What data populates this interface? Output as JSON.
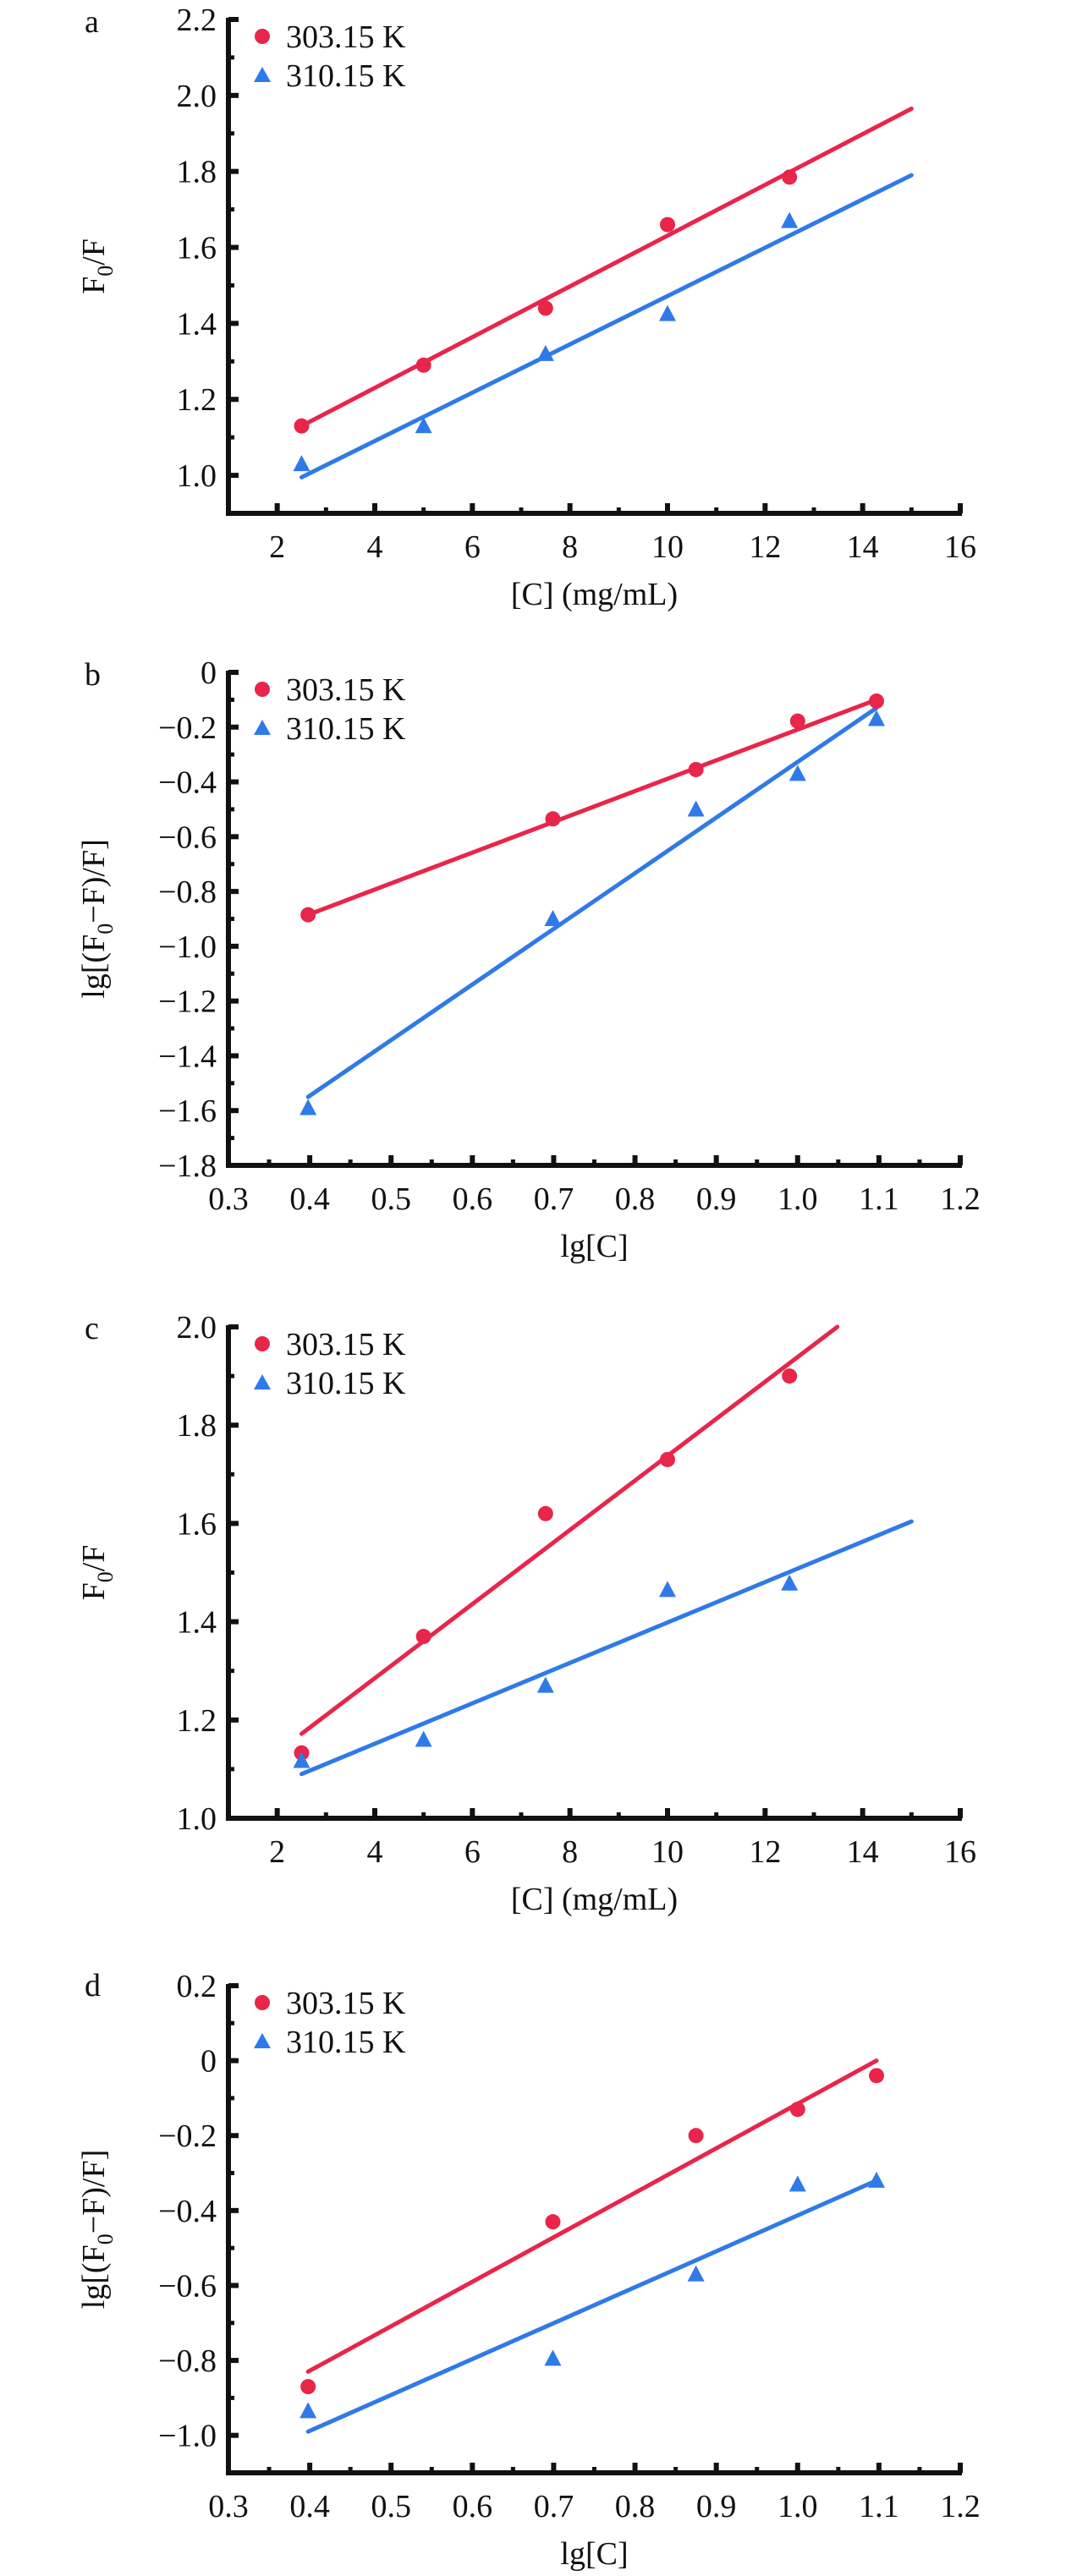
{
  "colors": {
    "series_303": "#e8254a",
    "series_310": "#2f7ae8",
    "axis": "#111111"
  },
  "chart_data": [
    {
      "panel": "a",
      "type": "scatter",
      "xlabel": "[C] (mg/mL)",
      "ylabel": "F0/F",
      "ylabel_parts": {
        "pre": "F",
        "sub": "0",
        "post": "/F"
      },
      "xlim": [
        1,
        16
      ],
      "ylim": [
        0.9,
        2.2
      ],
      "xticks": [
        2,
        4,
        6,
        8,
        10,
        12,
        14,
        16
      ],
      "xtick_labels": [
        "2",
        "4",
        "6",
        "8",
        "10",
        "12",
        "14",
        "16"
      ],
      "xminor": [
        3,
        5,
        7,
        9,
        11,
        13,
        15
      ],
      "yticks": [
        1.0,
        1.2,
        1.4,
        1.6,
        1.8,
        2.0,
        2.2
      ],
      "ytick_labels": [
        "1.0",
        "1.2",
        "1.4",
        "1.6",
        "1.8",
        "2.0",
        "2.2"
      ],
      "yminor": [
        1.1,
        1.3,
        1.5,
        1.7,
        1.9,
        2.1
      ],
      "legend": "top-left",
      "series": [
        {
          "name": "303.15 K",
          "marker": "circle",
          "x": [
            2.5,
            5,
            7.5,
            10,
            12.5
          ],
          "y": [
            1.13,
            1.29,
            1.44,
            1.66,
            1.785
          ],
          "fit": {
            "x": [
              2.5,
              15
            ],
            "y": [
              1.13,
              1.965
            ]
          }
        },
        {
          "name": "310.15 K",
          "marker": "triangle",
          "x": [
            2.5,
            5,
            7.5,
            10,
            12.5
          ],
          "y": [
            1.03,
            1.13,
            1.32,
            1.425,
            1.67
          ],
          "fit": {
            "x": [
              2.5,
              15
            ],
            "y": [
              0.995,
              1.79
            ]
          }
        }
      ]
    },
    {
      "panel": "b",
      "type": "scatter",
      "xlabel": "lg[C]",
      "ylabel": "lg[(F0−F)/F]",
      "ylabel_parts": {
        "pre": "lg[(F",
        "sub": "0",
        "post": "−F)/F]"
      },
      "xlim": [
        0.3,
        1.2
      ],
      "ylim": [
        -1.8,
        0
      ],
      "xticks": [
        0.3,
        0.4,
        0.5,
        0.6,
        0.7,
        0.8,
        0.9,
        1.0,
        1.1,
        1.2
      ],
      "xtick_labels": [
        "0.3",
        "0.4",
        "0.5",
        "0.6",
        "0.7",
        "0.8",
        "0.9",
        "1.0",
        "1.1",
        "1.2"
      ],
      "xminor": [
        0.35,
        0.45,
        0.55,
        0.65,
        0.75,
        0.85,
        0.95,
        1.05,
        1.15
      ],
      "yticks": [
        -1.8,
        -1.6,
        -1.4,
        -1.2,
        -1.0,
        -0.8,
        -0.6,
        -0.4,
        -0.2,
        0
      ],
      "ytick_labels": [
        "−1.8",
        "−1.6",
        "−1.4",
        "−1.2",
        "−1.0",
        "−0.8",
        "−0.6",
        "−0.4",
        "−0.2",
        "0"
      ],
      "yminor": [
        -1.7,
        -1.5,
        -1.3,
        -1.1,
        -0.9,
        -0.7,
        -0.5,
        -0.3,
        -0.1
      ],
      "legend": "top-left",
      "series": [
        {
          "name": "303.15 K",
          "marker": "circle",
          "x": [
            0.398,
            0.699,
            0.875,
            1.0,
            1.097
          ],
          "y": [
            -0.885,
            -0.535,
            -0.355,
            -0.178,
            -0.105
          ],
          "fit": {
            "x": [
              0.398,
              1.097
            ],
            "y": [
              -0.885,
              -0.1
            ]
          }
        },
        {
          "name": "310.15 K",
          "marker": "triangle",
          "x": [
            0.398,
            0.699,
            0.875,
            1.0,
            1.097
          ],
          "y": [
            -1.59,
            -0.9,
            -0.5,
            -0.37,
            -0.17
          ],
          "fit": {
            "x": [
              0.398,
              1.097
            ],
            "y": [
              -1.55,
              -0.13
            ]
          }
        }
      ]
    },
    {
      "panel": "c",
      "type": "scatter",
      "xlabel": "[C] (mg/mL)",
      "ylabel": "F0/F",
      "ylabel_parts": {
        "pre": "F",
        "sub": "0",
        "post": "/F"
      },
      "xlim": [
        1,
        16
      ],
      "ylim": [
        1.0,
        2.0
      ],
      "xticks": [
        2,
        4,
        6,
        8,
        10,
        12,
        14,
        16
      ],
      "xtick_labels": [
        "2",
        "4",
        "6",
        "8",
        "10",
        "12",
        "14",
        "16"
      ],
      "xminor": [
        3,
        5,
        7,
        9,
        11,
        13,
        15
      ],
      "yticks": [
        1.0,
        1.2,
        1.4,
        1.6,
        1.8,
        2.0
      ],
      "ytick_labels": [
        "1.0",
        "1.2",
        "1.4",
        "1.6",
        "1.8",
        "2.0"
      ],
      "yminor": [
        1.1,
        1.3,
        1.5,
        1.7,
        1.9
      ],
      "legend": "top-left",
      "series": [
        {
          "name": "303.15 K",
          "marker": "circle",
          "x": [
            2.5,
            5,
            7.5,
            10,
            12.5
          ],
          "y": [
            1.133,
            1.37,
            1.62,
            1.73,
            1.9
          ],
          "fit": {
            "x": [
              2.5,
              13.48
            ],
            "y": [
              1.172,
              2.0
            ]
          }
        },
        {
          "name": "310.15 K",
          "marker": "triangle",
          "x": [
            2.5,
            5,
            7.5,
            10,
            12.5
          ],
          "y": [
            1.117,
            1.16,
            1.27,
            1.465,
            1.478
          ],
          "fit": {
            "x": [
              2.5,
              15
            ],
            "y": [
              1.09,
              1.604
            ]
          }
        }
      ]
    },
    {
      "panel": "d",
      "type": "scatter",
      "xlabel": "lg[C]",
      "ylabel": "lg[(F0−F)/F]",
      "ylabel_parts": {
        "pre": "lg[(F",
        "sub": "0",
        "post": "−F)/F]"
      },
      "xlim": [
        0.3,
        1.2
      ],
      "ylim": [
        -1.1,
        0.2
      ],
      "xticks": [
        0.3,
        0.4,
        0.5,
        0.6,
        0.7,
        0.8,
        0.9,
        1.0,
        1.1,
        1.2
      ],
      "xtick_labels": [
        "0.3",
        "0.4",
        "0.5",
        "0.6",
        "0.7",
        "0.8",
        "0.9",
        "1.0",
        "1.1",
        "1.2"
      ],
      "xminor": [
        0.35,
        0.45,
        0.55,
        0.65,
        0.75,
        0.85,
        0.95,
        1.05,
        1.15
      ],
      "yticks": [
        -1.0,
        -0.8,
        -0.6,
        -0.4,
        -0.2,
        0,
        0.2
      ],
      "ytick_labels": [
        "−1.0",
        "−0.8",
        "−0.6",
        "−0.4",
        "−0.2",
        "0",
        "0.2"
      ],
      "yminor": [
        -0.9,
        -0.7,
        -0.5,
        -0.3,
        -0.1,
        0.1
      ],
      "legend": "top-left",
      "series": [
        {
          "name": "303.15 K",
          "marker": "circle",
          "x": [
            0.398,
            0.699,
            0.875,
            1.0,
            1.097
          ],
          "y": [
            -0.87,
            -0.43,
            -0.2,
            -0.13,
            -0.04
          ],
          "fit": {
            "x": [
              0.398,
              1.097
            ],
            "y": [
              -0.83,
              0.0
            ]
          }
        },
        {
          "name": "310.15 K",
          "marker": "triangle",
          "x": [
            0.398,
            0.699,
            0.875,
            1.0,
            1.097
          ],
          "y": [
            -0.935,
            -0.795,
            -0.57,
            -0.33,
            -0.32
          ],
          "fit": {
            "x": [
              0.398,
              1.097
            ],
            "y": [
              -0.99,
              -0.32
            ]
          }
        }
      ]
    }
  ]
}
